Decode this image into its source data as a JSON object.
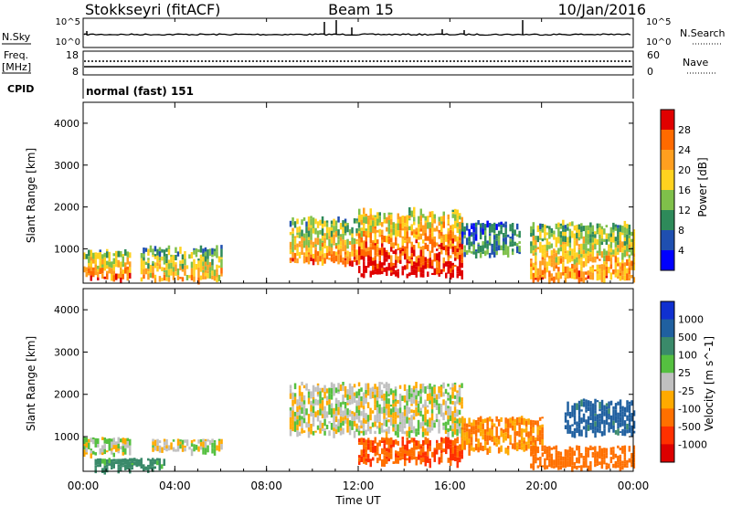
{
  "header": {
    "station": "Stokkseyri (fitACF)",
    "beam": "Beam 15",
    "date": "10/Jan/2016"
  },
  "status_panels": {
    "nsky_label": "N.Sky",
    "nsky_ticks": [
      "10^5",
      "10^0"
    ],
    "nsearch_label": "N.Search",
    "nsearch_ticks": [
      "10^5",
      "10^0"
    ],
    "freq_label_1": "Freq.",
    "freq_label_2": "[MHz]",
    "freq_ticks": [
      "18",
      "8"
    ],
    "nave_label": "Nave",
    "nave_ticks": [
      "60",
      "0"
    ],
    "cpid_label": "CPID",
    "cpid_value": "normal (fast) 151"
  },
  "colors": {
    "power_scale": [
      "#0000ff",
      "#1f4fb0",
      "#2e8a5a",
      "#7fc04a",
      "#ffd21f",
      "#ff9f1f",
      "#ff6a00",
      "#e00000"
    ],
    "velocity_scale": [
      "#1030d0",
      "#2060a0",
      "#3a8a6a",
      "#55c040",
      "#c0c0c0",
      "#ffaa00",
      "#ff7000",
      "#ff3000",
      "#dd0000"
    ]
  },
  "chart_data": [
    {
      "type": "heatmap",
      "title": "",
      "xlabel": "",
      "ylabel": "Slant Range [km]",
      "xlim": [
        "00:00",
        "24:00"
      ],
      "ylim": [
        180,
        4500
      ],
      "x_ticks": [
        "00:00",
        "04:00",
        "08:00",
        "12:00",
        "16:00",
        "20:00",
        "00:00"
      ],
      "y_ticks": [
        1000,
        2000,
        3000,
        4000
      ],
      "colorbar": {
        "label": "Power [dB]",
        "range": [
          0,
          30
        ],
        "ticks": [
          "4",
          "8",
          "12",
          "16",
          "20",
          "24",
          "28"
        ]
      },
      "regions": [
        {
          "t_start": 0.0,
          "t_end": 2.0,
          "range_from_km": 300,
          "range_to_km": 1000,
          "level_db": 22
        },
        {
          "t_start": 2.5,
          "t_end": 6.0,
          "range_from_km": 300,
          "range_to_km": 1100,
          "level_db": 18
        },
        {
          "t_start": 9.0,
          "t_end": 12.0,
          "range_from_km": 700,
          "range_to_km": 1800,
          "level_db": 20
        },
        {
          "t_start": 12.0,
          "t_end": 16.5,
          "range_from_km": 400,
          "range_to_km": 2000,
          "level_db": 26
        },
        {
          "t_start": 16.5,
          "t_end": 19.0,
          "range_from_km": 900,
          "range_to_km": 1700,
          "level_db": 10
        },
        {
          "t_start": 19.5,
          "t_end": 24.0,
          "range_from_km": 300,
          "range_to_km": 1700,
          "level_db": 20
        }
      ]
    },
    {
      "type": "heatmap",
      "title": "",
      "xlabel": "Time UT",
      "ylabel": "Slant Range [km]",
      "xlim": [
        "00:00",
        "24:00"
      ],
      "ylim": [
        180,
        4500
      ],
      "x_ticks": [
        "00:00",
        "04:00",
        "08:00",
        "12:00",
        "16:00",
        "20:00",
        "00:00"
      ],
      "y_ticks": [
        1000,
        2000,
        3000,
        4000
      ],
      "colorbar": {
        "label": "Velocity [m s^-1]",
        "ticks": [
          "1000",
          "500",
          "100",
          "25",
          "-25",
          "-100",
          "-500",
          "-1000"
        ]
      },
      "regions": [
        {
          "t_start": 0.0,
          "t_end": 2.0,
          "range_from_km": 600,
          "range_to_km": 1000,
          "velocity": 0
        },
        {
          "t_start": 0.5,
          "t_end": 3.5,
          "range_from_km": 250,
          "range_to_km": 500,
          "velocity": 150
        },
        {
          "t_start": 3.0,
          "t_end": 6.0,
          "range_from_km": 700,
          "range_to_km": 950,
          "velocity": 0
        },
        {
          "t_start": 9.0,
          "t_end": 16.5,
          "range_from_km": 1100,
          "range_to_km": 2300,
          "velocity": 0
        },
        {
          "t_start": 12.0,
          "t_end": 16.5,
          "range_from_km": 400,
          "range_to_km": 1000,
          "velocity": -300
        },
        {
          "t_start": 16.5,
          "t_end": 20.0,
          "range_from_km": 700,
          "range_to_km": 1500,
          "velocity": -100
        },
        {
          "t_start": 19.5,
          "t_end": 24.0,
          "range_from_km": 300,
          "range_to_km": 800,
          "velocity": -200
        },
        {
          "t_start": 21.0,
          "t_end": 24.0,
          "range_from_km": 1100,
          "range_to_km": 1900,
          "velocity": 300
        }
      ]
    }
  ]
}
